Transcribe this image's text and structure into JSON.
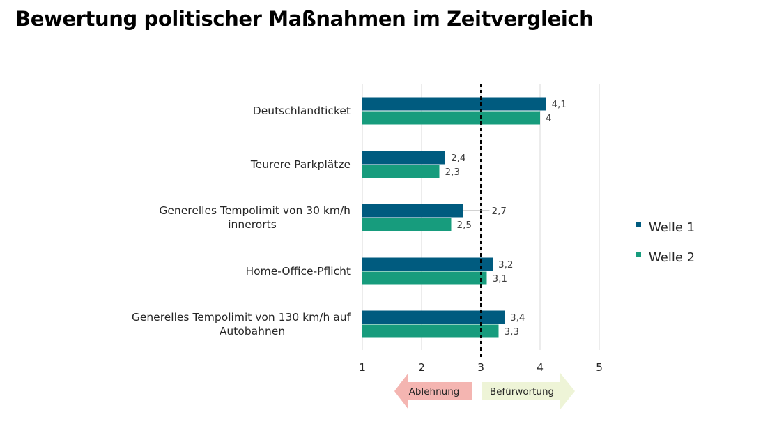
{
  "title": "Bewertung politischer Maßnahmen im Zeitvergleich",
  "chart_data": {
    "type": "bar",
    "orientation": "horizontal",
    "categories": [
      [
        "Deutschlandticket"
      ],
      [
        "Teurere Parkplätze"
      ],
      [
        "Generelles Tempolimit von 30 km/h",
        "innerorts"
      ],
      [
        "Home-Office-Pflicht"
      ],
      [
        "Generelles Tempolimit von 130 km/h auf",
        "Autobahnen"
      ]
    ],
    "series": [
      {
        "name": "Welle 1",
        "color": "#005b7f",
        "values": [
          4.1,
          2.4,
          2.7,
          3.2,
          3.4
        ],
        "labels": [
          "4,1",
          "2,4",
          "2,7",
          "3,2",
          "3,4"
        ]
      },
      {
        "name": "Welle 2",
        "color": "#179c7d",
        "values": [
          4.0,
          2.3,
          2.5,
          3.1,
          3.3
        ],
        "labels": [
          "4",
          "2,3",
          "2,5",
          "3,1",
          "3,3"
        ]
      }
    ],
    "xlim": [
      1,
      5
    ],
    "xticks": [
      "1",
      "2",
      "3",
      "4",
      "5"
    ],
    "reference_line": 3,
    "grid": "vertical",
    "legend_position": "right",
    "arrows": {
      "left": {
        "label": "Ablehnung",
        "color": "#f4b5b1"
      },
      "right": {
        "label": "Befürwortung",
        "color": "#eef4d7"
      }
    }
  }
}
